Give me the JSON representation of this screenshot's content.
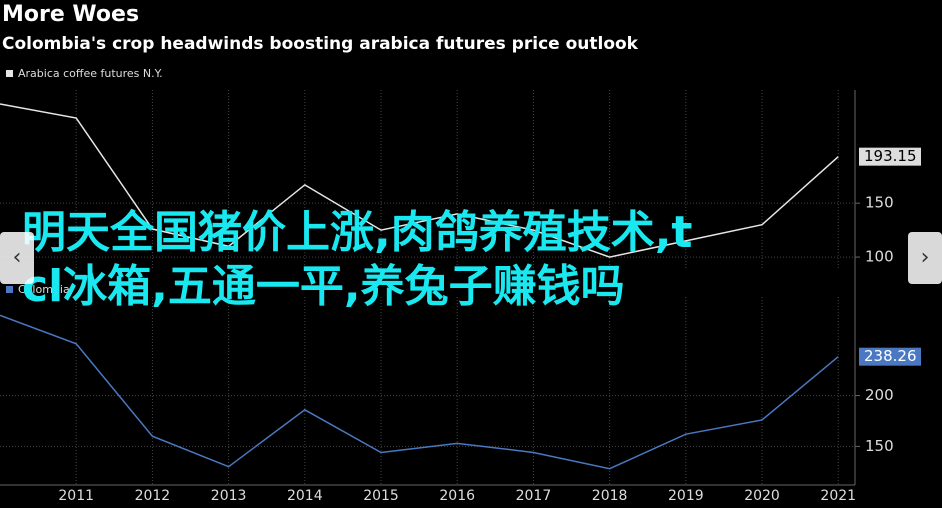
{
  "header": {
    "title": "More Woes",
    "subtitle": "Colombia's crop headwinds boosting arabica futures price outlook"
  },
  "chart_data": [
    {
      "type": "line",
      "legend": "Arabica coffee futures N.Y.",
      "color": "#e6e6e6",
      "x": [
        2010,
        2011,
        2012,
        2013,
        2014,
        2015,
        2016,
        2017,
        2018,
        2019,
        2020,
        2021
      ],
      "values": [
        242,
        229,
        126,
        110,
        167,
        125,
        140,
        125,
        100,
        115,
        130,
        193.15
      ],
      "xlim": [
        2010,
        2021.22
      ],
      "ylim": [
        88,
        255
      ],
      "yticks": [
        100,
        150
      ]
    },
    {
      "type": "line",
      "legend": "Colombia",
      "color": "#4a78c2",
      "x": [
        2010,
        2011,
        2012,
        2013,
        2014,
        2015,
        2016,
        2017,
        2018,
        2019,
        2020,
        2021
      ],
      "values": [
        279,
        251,
        160,
        130,
        186,
        144,
        153,
        144,
        128,
        162,
        176,
        238.26
      ],
      "xlim": [
        2010,
        2021.22
      ],
      "ylim": [
        112,
        297
      ],
      "yticks": [
        150,
        200
      ],
      "xticks": [
        2011,
        2012,
        2013,
        2014,
        2015,
        2016,
        2017,
        2018,
        2019,
        2020,
        2021
      ]
    }
  ],
  "overlay": {
    "lines": [
      "明天全国猪价上涨,肉鸽养殖技术,t",
      "cl冰箱,五通一平,养兔子赚钱吗"
    ]
  }
}
